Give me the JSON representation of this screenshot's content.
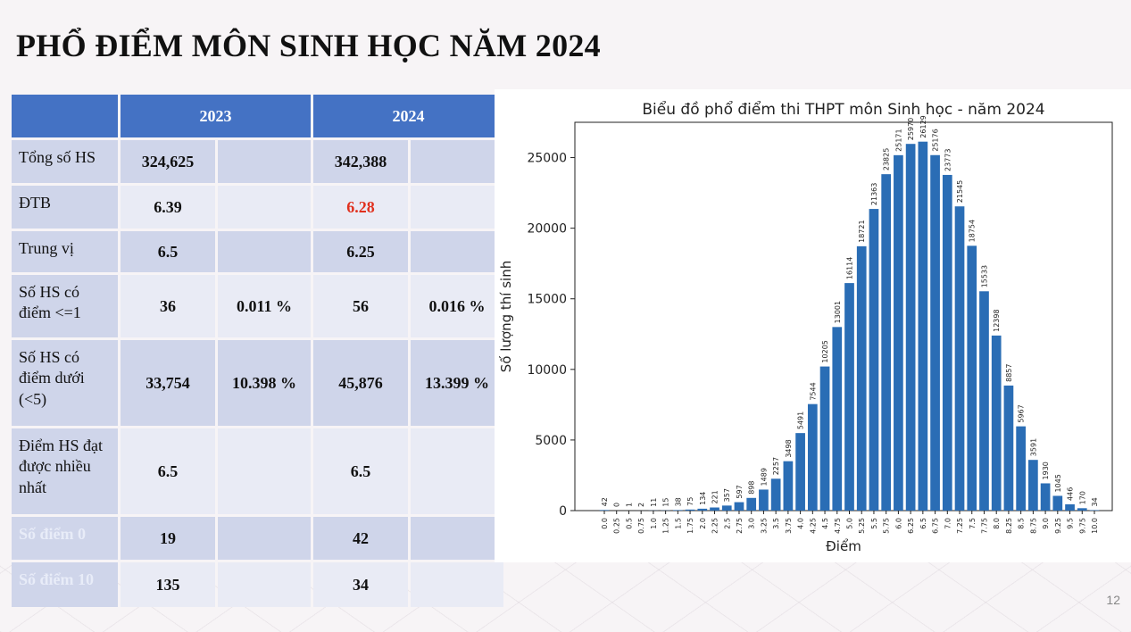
{
  "slide": {
    "title": "PHỔ ĐIỂM MÔN SINH HỌC NĂM 2024",
    "page_number": "12"
  },
  "table": {
    "headers": {
      "y2023": "2023",
      "y2024": "2024"
    },
    "rows": [
      {
        "label": "Tổng số HS",
        "v2023": "324,625",
        "p2023": "",
        "v2024": "342,388",
        "p2024": ""
      },
      {
        "label": "ĐTB",
        "v2023": "6.39",
        "p2023": "",
        "v2024": "6.28",
        "p2024": ""
      },
      {
        "label": "Trung vị",
        "v2023": "6.5",
        "p2023": "",
        "v2024": "6.25",
        "p2024": ""
      },
      {
        "label": "Số HS có điểm <=1",
        "v2023": "36",
        "p2023": "0.011 %",
        "v2024": "56",
        "p2024": "0.016 %"
      },
      {
        "label": "Số HS có điểm dưới (<5)",
        "v2023": "33,754",
        "p2023": "10.398 %",
        "v2024": "45,876",
        "p2024": "13.399 %"
      },
      {
        "label": "Điểm HS đạt được nhiều nhất",
        "v2023": "6.5",
        "p2023": "",
        "v2024": "6.5",
        "p2024": ""
      },
      {
        "label": "Số điểm 0",
        "v2023": "19",
        "p2023": "",
        "v2024": "42",
        "p2024": ""
      },
      {
        "label": "Số điểm 10",
        "v2023": "135",
        "p2023": "",
        "v2024": "34",
        "p2024": ""
      }
    ],
    "highlight_color": "#e0301e"
  },
  "chart_data": {
    "type": "bar",
    "title": "Biểu đồ phổ điểm thi THPT môn Sinh học - năm 2024",
    "xlabel": "Điểm",
    "ylabel": "Số lượng thí sinh",
    "categories": [
      "0.0",
      "0.25",
      "0.5",
      "0.75",
      "1.0",
      "1.25",
      "1.5",
      "1.75",
      "2.0",
      "2.25",
      "2.5",
      "2.75",
      "3.0",
      "3.25",
      "3.5",
      "3.75",
      "4.0",
      "4.25",
      "4.5",
      "4.75",
      "5.0",
      "5.25",
      "5.5",
      "5.75",
      "6.0",
      "6.25",
      "6.5",
      "6.75",
      "7.0",
      "7.25",
      "7.5",
      "7.75",
      "8.0",
      "8.25",
      "8.5",
      "8.75",
      "9.0",
      "9.25",
      "9.5",
      "9.75",
      "10.0"
    ],
    "values": [
      42,
      0,
      1,
      2,
      11,
      15,
      38,
      75,
      134,
      221,
      357,
      597,
      898,
      1489,
      2257,
      3498,
      5491,
      7544,
      10205,
      13001,
      16114,
      18721,
      21363,
      23825,
      25171,
      25970,
      26129,
      25176,
      23773,
      21545,
      18754,
      15533,
      12398,
      8857,
      5967,
      3591,
      1930,
      1045,
      446,
      170,
      34
    ],
    "yticks": [
      0,
      5000,
      10000,
      15000,
      20000,
      25000
    ],
    "ylim": [
      0,
      27500
    ],
    "bar_color": "#2a6db5",
    "grid": false,
    "data_labels": true
  }
}
